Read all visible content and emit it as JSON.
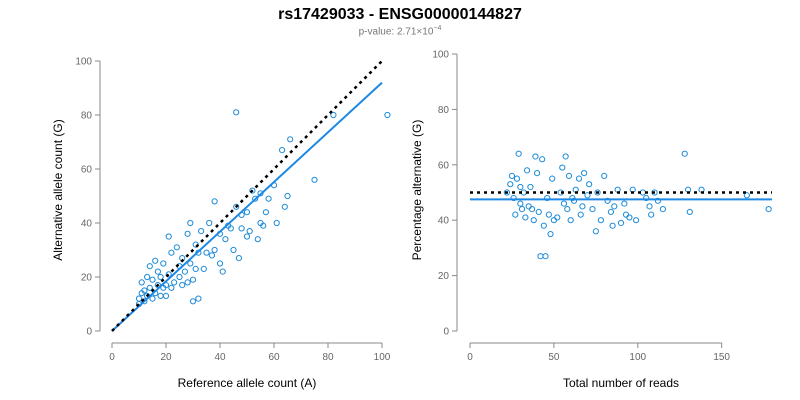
{
  "title": "rs17429033 - ENSG00000144827",
  "subtitle_prefix": "p-value: 2.71×10",
  "subtitle_exp": "−4",
  "colors": {
    "points": "#1e8bd8",
    "fit": "#1e88e5",
    "reference": "#000000",
    "axis": "#888888"
  },
  "chart_data": [
    {
      "type": "scatter",
      "title": "",
      "xlabel": "Reference allele count (A)",
      "ylabel": "Alternative allele count (G)",
      "xlim": [
        0,
        100
      ],
      "ylim": [
        0,
        100
      ],
      "xticks": [
        "0",
        "20",
        "40",
        "60",
        "80",
        "100"
      ],
      "yticks": [
        "0",
        "20",
        "40",
        "60",
        "80",
        "100"
      ],
      "grid": false,
      "reference_line": {
        "style": "dotted",
        "from": [
          0,
          0
        ],
        "to": [
          100,
          100
        ]
      },
      "fit_line": {
        "style": "solid",
        "from": [
          0,
          0
        ],
        "to": [
          100,
          92
        ]
      },
      "points": [
        [
          10,
          10
        ],
        [
          10,
          12
        ],
        [
          11,
          14
        ],
        [
          11,
          18
        ],
        [
          12,
          11
        ],
        [
          12,
          15
        ],
        [
          13,
          13
        ],
        [
          13,
          20
        ],
        [
          14,
          16
        ],
        [
          14,
          24
        ],
        [
          15,
          12
        ],
        [
          15,
          19
        ],
        [
          16,
          14
        ],
        [
          16,
          26
        ],
        [
          17,
          17
        ],
        [
          17,
          22
        ],
        [
          18,
          13
        ],
        [
          18,
          20
        ],
        [
          19,
          16
        ],
        [
          19,
          25
        ],
        [
          20,
          17
        ],
        [
          20,
          13
        ],
        [
          21,
          21
        ],
        [
          21,
          35
        ],
        [
          22,
          16
        ],
        [
          22,
          29
        ],
        [
          23,
          18
        ],
        [
          24,
          31
        ],
        [
          25,
          20
        ],
        [
          25,
          24
        ],
        [
          26,
          17
        ],
        [
          26,
          27
        ],
        [
          27,
          22
        ],
        [
          28,
          36
        ],
        [
          28,
          18
        ],
        [
          29,
          40
        ],
        [
          29,
          25
        ],
        [
          30,
          11
        ],
        [
          30,
          19
        ],
        [
          31,
          32
        ],
        [
          31,
          23
        ],
        [
          32,
          29
        ],
        [
          32,
          12
        ],
        [
          33,
          37
        ],
        [
          34,
          23
        ],
        [
          35,
          29
        ],
        [
          36,
          40
        ],
        [
          37,
          28
        ],
        [
          38,
          48
        ],
        [
          38,
          30
        ],
        [
          40,
          36
        ],
        [
          40,
          25
        ],
        [
          41,
          22
        ],
        [
          42,
          34
        ],
        [
          43,
          39
        ],
        [
          44,
          38
        ],
        [
          45,
          30
        ],
        [
          46,
          81
        ],
        [
          46,
          46
        ],
        [
          47,
          27
        ],
        [
          48,
          43
        ],
        [
          48,
          38
        ],
        [
          50,
          35
        ],
        [
          50,
          44
        ],
        [
          51,
          37
        ],
        [
          52,
          52
        ],
        [
          53,
          49
        ],
        [
          54,
          34
        ],
        [
          55,
          40
        ],
        [
          55,
          51
        ],
        [
          56,
          39
        ],
        [
          57,
          44
        ],
        [
          58,
          49
        ],
        [
          60,
          54
        ],
        [
          61,
          40
        ],
        [
          63,
          67
        ],
        [
          64,
          46
        ],
        [
          65,
          50
        ],
        [
          66,
          71
        ],
        [
          75,
          56
        ],
        [
          82,
          80
        ],
        [
          102,
          80
        ]
      ]
    },
    {
      "type": "scatter",
      "title": "",
      "xlabel": "Total number of reads",
      "ylabel": "Percentage alternative (G)",
      "xlim": [
        0,
        180
      ],
      "ylim": [
        0,
        100
      ],
      "xticks": [
        "0",
        "50",
        "100",
        "150"
      ],
      "yticks": [
        "0",
        "20",
        "40",
        "60",
        "80",
        "100"
      ],
      "grid": false,
      "reference_line": {
        "style": "dotted",
        "y": 50
      },
      "fit_line": {
        "style": "solid",
        "y": 47.5
      },
      "points": [
        [
          22,
          50
        ],
        [
          24,
          53
        ],
        [
          25,
          56
        ],
        [
          26,
          48
        ],
        [
          27,
          42
        ],
        [
          28,
          55
        ],
        [
          29,
          64
        ],
        [
          30,
          52
        ],
        [
          30,
          46
        ],
        [
          31,
          44
        ],
        [
          32,
          50
        ],
        [
          33,
          41
        ],
        [
          34,
          58
        ],
        [
          35,
          45
        ],
        [
          36,
          52
        ],
        [
          37,
          44
        ],
        [
          38,
          40
        ],
        [
          39,
          63
        ],
        [
          40,
          57
        ],
        [
          41,
          43
        ],
        [
          42,
          27
        ],
        [
          43,
          62
        ],
        [
          44,
          38
        ],
        [
          45,
          27
        ],
        [
          46,
          48
        ],
        [
          47,
          42
        ],
        [
          48,
          35
        ],
        [
          49,
          55
        ],
        [
          50,
          40
        ],
        [
          52,
          41
        ],
        [
          54,
          50
        ],
        [
          55,
          59
        ],
        [
          56,
          46
        ],
        [
          57,
          63
        ],
        [
          58,
          44
        ],
        [
          59,
          56
        ],
        [
          60,
          40
        ],
        [
          61,
          48
        ],
        [
          62,
          47
        ],
        [
          63,
          51
        ],
        [
          65,
          55
        ],
        [
          66,
          42
        ],
        [
          67,
          45
        ],
        [
          68,
          57
        ],
        [
          70,
          49
        ],
        [
          71,
          53
        ],
        [
          73,
          44
        ],
        [
          75,
          36
        ],
        [
          76,
          50
        ],
        [
          78,
          40
        ],
        [
          80,
          56
        ],
        [
          82,
          47
        ],
        [
          84,
          43
        ],
        [
          85,
          38
        ],
        [
          86,
          45
        ],
        [
          88,
          51
        ],
        [
          90,
          39
        ],
        [
          92,
          46
        ],
        [
          93,
          42
        ],
        [
          95,
          41
        ],
        [
          97,
          51
        ],
        [
          99,
          40
        ],
        [
          103,
          50
        ],
        [
          105,
          48
        ],
        [
          107,
          45
        ],
        [
          108,
          42
        ],
        [
          110,
          50
        ],
        [
          112,
          47
        ],
        [
          115,
          44
        ],
        [
          128,
          64
        ],
        [
          130,
          51
        ],
        [
          131,
          43
        ],
        [
          138,
          51
        ],
        [
          165,
          49
        ],
        [
          178,
          44
        ]
      ]
    }
  ]
}
